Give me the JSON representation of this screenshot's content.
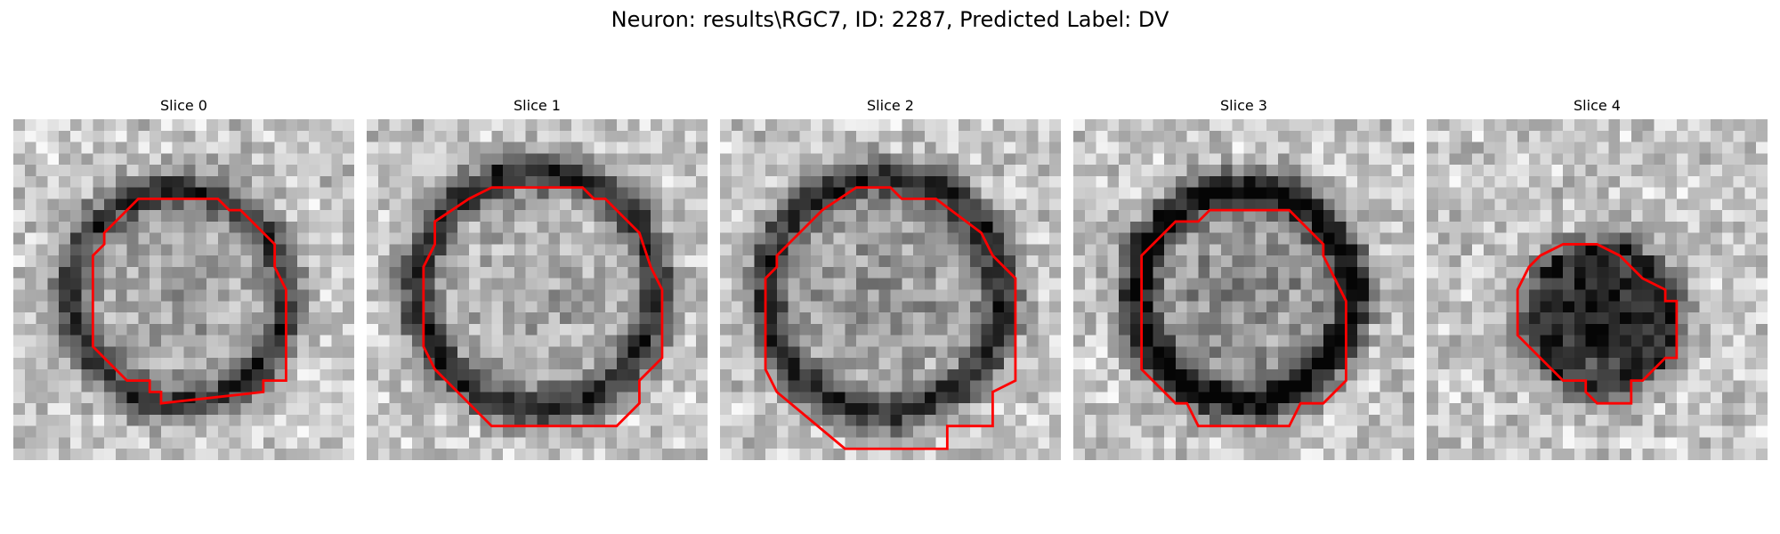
{
  "figure": {
    "title": "Neuron: results\\RGC7, ID: 2287, Predicted Label: DV"
  },
  "panels": [
    {
      "title": "Slice 0"
    },
    {
      "title": "Slice 1"
    },
    {
      "title": "Slice 2"
    },
    {
      "title": "Slice 3"
    },
    {
      "title": "Slice 4"
    }
  ],
  "style": {
    "outline_color": "#ff0000",
    "colormap": "grayscale"
  }
}
